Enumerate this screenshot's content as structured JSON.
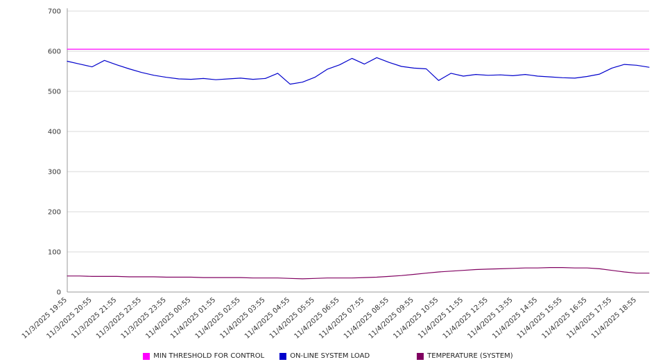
{
  "chart_data": {
    "type": "line",
    "title": "",
    "xlabel": "",
    "ylabel": "",
    "ylim": [
      0,
      700
    ],
    "y_ticks": [
      0,
      100,
      200,
      300,
      400,
      500,
      600,
      700
    ],
    "grid": "horizontal",
    "legend_position": "bottom",
    "x_span_hours": 23.5,
    "x_labels": [
      "11/3/2025 19:55",
      "11/3/2025 20:55",
      "11/3/2025 21:55",
      "11/3/2025 22:55",
      "11/3/2025 23:55",
      "11/4/2025 00:55",
      "11/4/2025 01:55",
      "11/4/2025 02:55",
      "11/4/2025 03:55",
      "11/4/2025 04:55",
      "11/4/2025 05:55",
      "11/4/2025 06:55",
      "11/4/2025 07:55",
      "11/4/2025 08:55",
      "11/4/2025 09:55",
      "11/4/2025 10:55",
      "11/4/2025 11:55",
      "11/4/2025 12:55",
      "11/4/2025 13:55",
      "11/4/2025 14:55",
      "11/4/2025 15:55",
      "11/4/2025 16:55",
      "11/4/2025 17:55",
      "11/4/2025 18:55"
    ],
    "series": [
      {
        "name": "MIN THRESHOLD FOR CONTROL",
        "color": "#ff00ff",
        "x_step_hours": 23.5,
        "values": [
          605,
          605
        ]
      },
      {
        "name": "ON-LINE SYSTEM LOAD",
        "color": "#0000cc",
        "x_step_hours": 0.5,
        "values": [
          575,
          568,
          561,
          577,
          566,
          556,
          547,
          540,
          535,
          531,
          530,
          532,
          529,
          531,
          533,
          530,
          532,
          545,
          518,
          523,
          535,
          555,
          566,
          582,
          568,
          584,
          572,
          562,
          558,
          556,
          527,
          545,
          538,
          542,
          540,
          541,
          539,
          542,
          538,
          536,
          534,
          533,
          537,
          543,
          558,
          567,
          565,
          560
        ]
      },
      {
        "name": "TEMPERATURE (SYSTEM)",
        "color": "#800060",
        "x_step_hours": 0.5,
        "values": [
          40,
          40,
          39,
          39,
          39,
          38,
          38,
          38,
          37,
          37,
          37,
          36,
          36,
          36,
          36,
          35,
          35,
          35,
          34,
          33,
          34,
          35,
          35,
          35,
          36,
          37,
          39,
          41,
          44,
          47,
          50,
          52,
          54,
          56,
          57,
          58,
          59,
          60,
          60,
          61,
          61,
          60,
          60,
          58,
          54,
          50,
          47,
          47
        ]
      }
    ]
  },
  "legend": {
    "items": [
      {
        "label": "MIN THRESHOLD FOR CONTROL"
      },
      {
        "label": "ON-LINE SYSTEM LOAD"
      },
      {
        "label": "TEMPERATURE (SYSTEM)"
      }
    ]
  }
}
